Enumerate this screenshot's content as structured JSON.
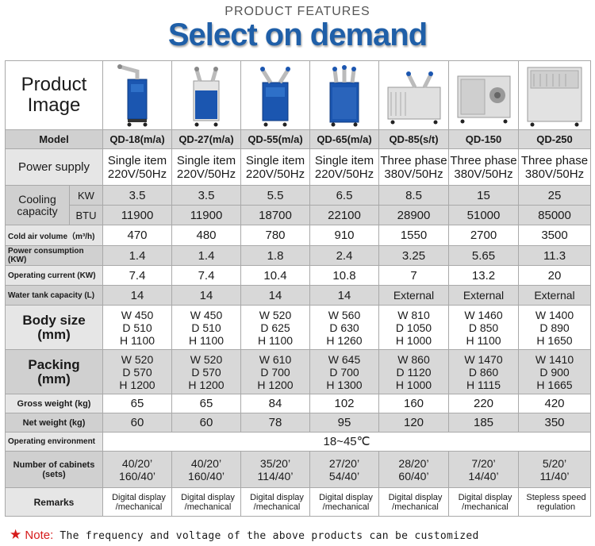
{
  "header": {
    "kicker": "PRODUCT FEATURES",
    "headline": "Select on demand"
  },
  "product_label": "Product\nImage",
  "models": [
    "QD-18(m/a)",
    "QD-27(m/a)",
    "QD-55(m/a)",
    "QD-65(m/a)",
    "QD-85(s/t)",
    "QD-150",
    "QD-250"
  ],
  "images": [
    "qd-18-unit",
    "qd-27-unit",
    "qd-55-unit",
    "qd-65-unit",
    "qd-85-unit",
    "qd-150-unit",
    "qd-250-unit"
  ],
  "rows": {
    "model": "Model",
    "power_supply": {
      "label": "Power supply",
      "values": [
        "Single item\n220V/50Hz",
        "Single item\n220V/50Hz",
        "Single item\n220V/50Hz",
        "Single item\n220V/50Hz",
        "Three phase\n380V/50Hz",
        "Three phase\n380V/50Hz",
        "Three phase\n380V/50Hz"
      ]
    },
    "cooling": {
      "label": "Cooling\ncapacity",
      "kw_label": "KW",
      "btu_label": "BTU",
      "kw": [
        "3.5",
        "3.5",
        "5.5",
        "6.5",
        "8.5",
        "15",
        "25"
      ],
      "btu": [
        "11900",
        "11900",
        "18700",
        "22100",
        "28900",
        "51000",
        "85000"
      ]
    },
    "cold_air": {
      "label": "Cold air volume（m³/h)",
      "values": [
        "470",
        "480",
        "780",
        "910",
        "1550",
        "2700",
        "3500"
      ]
    },
    "power_consumption": {
      "label": "Power consumption (KW)",
      "values": [
        "1.4",
        "1.4",
        "1.8",
        "2.4",
        "3.25",
        "5.65",
        "11.3"
      ]
    },
    "operating_current": {
      "label": "Operating current (KW)",
      "values": [
        "7.4",
        "7.4",
        "10.4",
        "10.8",
        "7",
        "13.2",
        "20"
      ]
    },
    "water_tank": {
      "label": "Water tank capacity (L)",
      "values": [
        "14",
        "14",
        "14",
        "14",
        "External",
        "External",
        "External"
      ]
    },
    "body_size": {
      "label": "Body size\n(mm)",
      "values": [
        "W 450\nD 510\nH 1100",
        "W 450\nD 510\nH 1100",
        "W 520\nD 625\nH 1100",
        "W 560\nD 630\nH 1260",
        "W 810\nD 1050\nH 1000",
        "W 1460\nD 850\nH 1100",
        "W 1400\nD 890\nH 1650"
      ]
    },
    "packing": {
      "label": "Packing\n(mm)",
      "values": [
        "W 520\nD 570\nH 1200",
        "W 520\nD 570\nH 1200",
        "W 610\nD 700\nH 1200",
        "W 645\nD 700\nH 1300",
        "W 860\nD 1120\nH 1000",
        "W 1470\nD 860\nH 1115",
        "W 1410\nD 900\nH 1665"
      ]
    },
    "gross_weight": {
      "label": "Gross weight (kg)",
      "values": [
        "65",
        "65",
        "84",
        "102",
        "160",
        "220",
        "420"
      ]
    },
    "net_weight": {
      "label": "Net weight (kg)",
      "values": [
        "60",
        "60",
        "78",
        "95",
        "120",
        "185",
        "350"
      ]
    },
    "operating_env": {
      "label": "Operating environment",
      "value": "18~45℃"
    },
    "cabinets": {
      "label": "Number of cabinets\n(sets)",
      "values": [
        "40/20’\n160/40’",
        "40/20’\n160/40’",
        "35/20’\n114/40’",
        "27/20’\n54/40’",
        "28/20’\n60/40’",
        "7/20’\n14/40’",
        "5/20’\n11/40’"
      ]
    },
    "remarks": {
      "label": "Remarks",
      "values": [
        "Digital display\n/mechanical",
        "Digital display\n/mechanical",
        "Digital display\n/mechanical",
        "Digital display\n/mechanical",
        "Digital display\n/mechanical",
        "Digital display\n/mechanical",
        "Stepless speed\nregulation"
      ]
    }
  },
  "note": {
    "star": "★",
    "label": "Note:",
    "text": " The frequency and voltage of the above products can be customized"
  },
  "colors": {
    "headline": "#1f5fa8",
    "note_red": "#d61b1b",
    "unit_blue": "#1b56b0",
    "unit_grey": "#d9d9d9"
  }
}
